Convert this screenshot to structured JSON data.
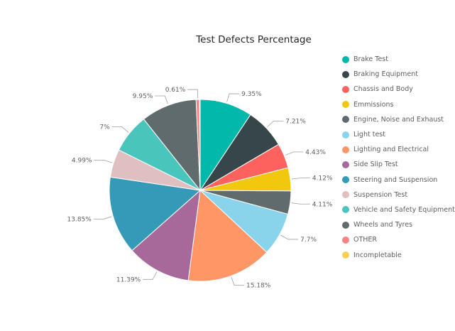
{
  "chart_data": {
    "type": "pie",
    "title": "Test Defects Percentage",
    "legend_position": "right",
    "slices": [
      {
        "name": "Brake Test",
        "value": 9.35,
        "label": "9.35%",
        "color": "#01B8AA"
      },
      {
        "name": "Braking Equipment",
        "value": 7.21,
        "label": "7.21%",
        "color": "#374649"
      },
      {
        "name": "Chassis and Body",
        "value": 4.43,
        "label": "4.43%",
        "color": "#FD625E"
      },
      {
        "name": "Emmissions",
        "value": 4.12,
        "label": "4.12%",
        "color": "#F2C80F"
      },
      {
        "name": "Engine, Noise and Exhaust",
        "value": 4.11,
        "label": "4.11%",
        "color": "#5F6B6D"
      },
      {
        "name": "Light test",
        "value": 7.7,
        "label": "7.7%",
        "color": "#8AD4EB"
      },
      {
        "name": "Lighting and Electrical",
        "value": 15.18,
        "label": "15.18%",
        "color": "#FE9666"
      },
      {
        "name": "Side Slip Test",
        "value": 11.39,
        "label": "11.39%",
        "color": "#A66999"
      },
      {
        "name": "Steering and Suspension",
        "value": 13.85,
        "label": "13.85%",
        "color": "#3599B8"
      },
      {
        "name": "Suspension Test",
        "value": 4.99,
        "label": "4.99%",
        "color": "#DFBFBF"
      },
      {
        "name": "Vehicle and Safety Equipment",
        "value": 7.0,
        "label": "7%",
        "color": "#4AC5BB"
      },
      {
        "name": "Wheels and Tyres",
        "value": 9.95,
        "label": "9.95%",
        "color": "#5F6B6D"
      },
      {
        "name": "OTHER",
        "value": 0.61,
        "label": "0.61%",
        "color": "#FB8281"
      },
      {
        "name": "Incompletable",
        "value": 0.11,
        "label": "",
        "color": "#F4D25A"
      }
    ]
  }
}
